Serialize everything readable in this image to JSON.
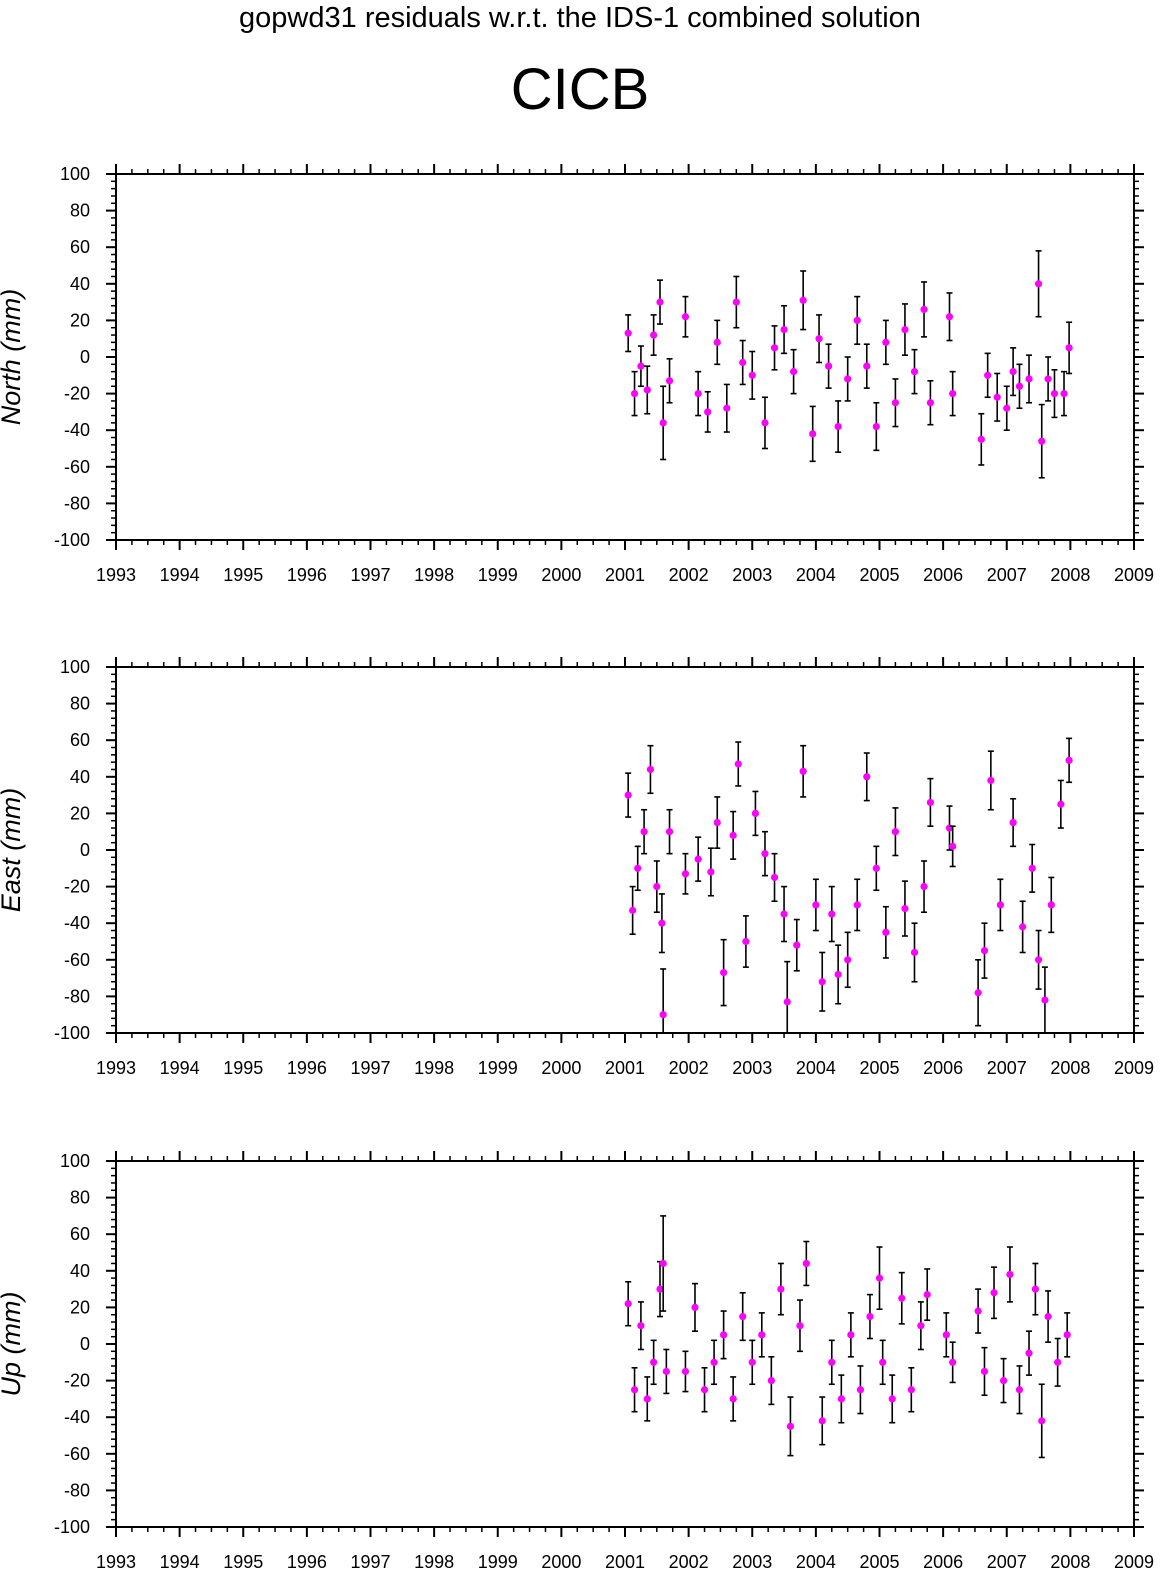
{
  "title": "gopwd31 residuals w.r.t. the IDS-1 combined solution",
  "station": "CICB",
  "colors": {
    "marker": "#ff00ff",
    "errorbar": "#000000",
    "axis": "#000000",
    "background": "#ffffff"
  },
  "chart_data": [
    {
      "type": "scatter",
      "ylabel": "North (mm)",
      "xlim": [
        1993,
        2009
      ],
      "ylim": [
        -100,
        100
      ],
      "x_ticks": [
        "1993",
        "1994",
        "1995",
        "1996",
        "1997",
        "1998",
        "1999",
        "2000",
        "2001",
        "2002",
        "2003",
        "2004",
        "2005",
        "2006",
        "2007",
        "2008",
        "2009"
      ],
      "y_ticks": [
        "100",
        "80",
        "60",
        "40",
        "20",
        "0",
        "-20",
        "-40",
        "-60",
        "-80",
        "-100"
      ],
      "grid": false,
      "series": [
        {
          "error_bars": "vertical",
          "x": [
            2001.05,
            2001.15,
            2001.25,
            2001.35,
            2001.45,
            2001.55,
            2001.6,
            2001.7,
            2001.95,
            2002.15,
            2002.3,
            2002.45,
            2002.6,
            2002.75,
            2002.85,
            2003.0,
            2003.2,
            2003.35,
            2003.5,
            2003.65,
            2003.8,
            2003.95,
            2004.05,
            2004.2,
            2004.35,
            2004.5,
            2004.65,
            2004.8,
            2004.95,
            2005.1,
            2005.25,
            2005.4,
            2005.55,
            2005.7,
            2005.8,
            2006.1,
            2006.15,
            2006.6,
            2006.7,
            2006.85,
            2007.0,
            2007.1,
            2007.2,
            2007.35,
            2007.5,
            2007.55,
            2007.65,
            2007.75,
            2007.9,
            2007.98
          ],
          "y": [
            13,
            -20,
            -5,
            -18,
            12,
            30,
            -36,
            -13,
            22,
            -20,
            -30,
            8,
            -28,
            30,
            -3,
            -10,
            -36,
            5,
            15,
            -8,
            31,
            -42,
            10,
            -5,
            -38,
            -12,
            20,
            -5,
            -38,
            8,
            -25,
            15,
            -8,
            26,
            -25,
            22,
            -20,
            -45,
            -10,
            -22,
            -28,
            -8,
            -16,
            -12,
            40,
            -46,
            -12,
            -20,
            -20,
            5
          ],
          "error": [
            10,
            12,
            11,
            13,
            11,
            12,
            20,
            12,
            11,
            12,
            11,
            12,
            13,
            14,
            12,
            13,
            14,
            12,
            13,
            12,
            16,
            15,
            13,
            12,
            14,
            12,
            13,
            12,
            13,
            12,
            13,
            14,
            12,
            15,
            12,
            13,
            12,
            14,
            12,
            13,
            12,
            13,
            12,
            13,
            18,
            20,
            12,
            13,
            12,
            14
          ]
        }
      ]
    },
    {
      "type": "scatter",
      "ylabel": "East (mm)",
      "xlim": [
        1993,
        2009
      ],
      "ylim": [
        -100,
        100
      ],
      "x_ticks": [
        "1993",
        "1994",
        "1995",
        "1996",
        "1997",
        "1998",
        "1999",
        "2000",
        "2001",
        "2002",
        "2003",
        "2004",
        "2005",
        "2006",
        "2007",
        "2008",
        "2009"
      ],
      "y_ticks": [
        "100",
        "80",
        "60",
        "40",
        "20",
        "0",
        "-20",
        "-40",
        "-60",
        "-80",
        "-100"
      ],
      "grid": false,
      "series": [
        {
          "error_bars": "vertical",
          "x": [
            2001.05,
            2001.12,
            2001.2,
            2001.3,
            2001.4,
            2001.5,
            2001.58,
            2001.6,
            2001.7,
            2001.95,
            2002.15,
            2002.35,
            2002.45,
            2002.55,
            2002.7,
            2002.78,
            2002.9,
            2003.05,
            2003.2,
            2003.35,
            2003.5,
            2003.55,
            2003.7,
            2003.8,
            2004.0,
            2004.1,
            2004.25,
            2004.35,
            2004.5,
            2004.65,
            2004.8,
            2004.95,
            2005.1,
            2005.25,
            2005.4,
            2005.55,
            2005.7,
            2005.8,
            2006.1,
            2006.15,
            2006.55,
            2006.65,
            2006.75,
            2006.9,
            2007.1,
            2007.25,
            2007.4,
            2007.5,
            2007.6,
            2007.7,
            2007.85,
            2007.98
          ],
          "y": [
            30,
            -33,
            -10,
            10,
            44,
            -20,
            -40,
            -90,
            10,
            -13,
            -5,
            -12,
            15,
            -67,
            8,
            47,
            -50,
            20,
            -2,
            -15,
            -35,
            -83,
            -52,
            43,
            -30,
            -72,
            -35,
            -68,
            -60,
            -30,
            40,
            -10,
            -45,
            10,
            -32,
            -56,
            -20,
            26,
            12,
            2,
            -78,
            -55,
            38,
            -30,
            15,
            -42,
            -10,
            -60,
            -82,
            -30,
            25,
            49
          ],
          "error": [
            12,
            13,
            12,
            12,
            13,
            14,
            16,
            25,
            12,
            11,
            12,
            13,
            14,
            18,
            13,
            12,
            14,
            12,
            12,
            13,
            15,
            22,
            14,
            14,
            14,
            16,
            15,
            16,
            15,
            14,
            13,
            12,
            14,
            13,
            15,
            16,
            14,
            13,
            12,
            11,
            18,
            15,
            16,
            14,
            13,
            14,
            13,
            16,
            18,
            15,
            13,
            12
          ]
        }
      ]
    },
    {
      "type": "scatter",
      "ylabel": "Up (mm)",
      "xlim": [
        1993,
        2009
      ],
      "ylim": [
        -100,
        100
      ],
      "x_ticks": [
        "1993",
        "1994",
        "1995",
        "1996",
        "1997",
        "1998",
        "1999",
        "2000",
        "2001",
        "2002",
        "2003",
        "2004",
        "2005",
        "2006",
        "2007",
        "2008",
        "2009"
      ],
      "y_ticks": [
        "100",
        "80",
        "60",
        "40",
        "20",
        "0",
        "-20",
        "-40",
        "-60",
        "-80",
        "-100"
      ],
      "grid": false,
      "series": [
        {
          "error_bars": "vertical",
          "x": [
            2001.05,
            2001.15,
            2001.25,
            2001.35,
            2001.45,
            2001.55,
            2001.6,
            2001.65,
            2001.95,
            2002.1,
            2002.25,
            2002.4,
            2002.55,
            2002.7,
            2002.85,
            2003.0,
            2003.15,
            2003.3,
            2003.45,
            2003.6,
            2003.75,
            2003.85,
            2004.1,
            2004.25,
            2004.4,
            2004.55,
            2004.7,
            2004.85,
            2005.0,
            2005.05,
            2005.2,
            2005.35,
            2005.5,
            2005.65,
            2005.75,
            2006.05,
            2006.15,
            2006.55,
            2006.65,
            2006.8,
            2006.95,
            2007.05,
            2007.2,
            2007.35,
            2007.45,
            2007.55,
            2007.65,
            2007.8,
            2007.95
          ],
          "y": [
            22,
            -25,
            10,
            -30,
            -10,
            30,
            44,
            -15,
            -15,
            20,
            -25,
            -10,
            5,
            -30,
            15,
            -10,
            5,
            -20,
            30,
            -45,
            10,
            44,
            -42,
            -10,
            -30,
            5,
            -25,
            15,
            36,
            -10,
            -30,
            25,
            -25,
            10,
            27,
            5,
            -10,
            18,
            -15,
            28,
            -20,
            38,
            -25,
            -5,
            30,
            -42,
            15,
            -10,
            5
          ],
          "error": [
            12,
            12,
            13,
            12,
            12,
            15,
            26,
            12,
            11,
            13,
            12,
            12,
            13,
            12,
            13,
            12,
            12,
            13,
            14,
            16,
            14,
            12,
            13,
            12,
            13,
            12,
            13,
            12,
            17,
            12,
            13,
            14,
            12,
            13,
            14,
            12,
            11,
            12,
            13,
            14,
            12,
            15,
            13,
            12,
            14,
            20,
            14,
            13,
            12
          ]
        }
      ]
    }
  ]
}
